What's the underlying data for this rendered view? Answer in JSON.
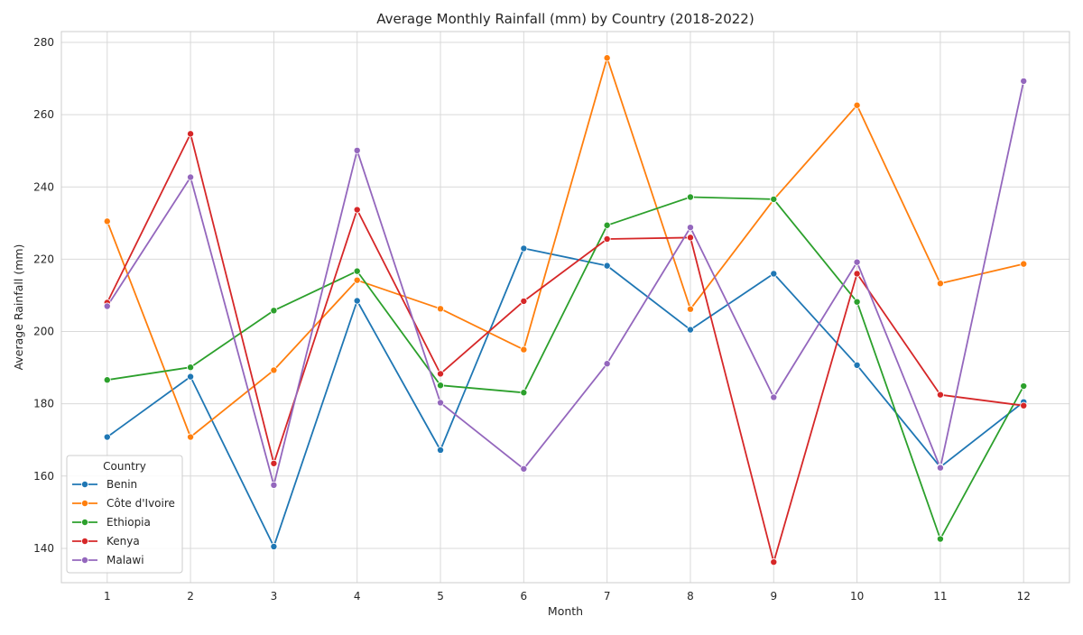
{
  "chart_data": {
    "type": "line",
    "title": "Average Monthly Rainfall (mm) by Country (2018-2022)",
    "xlabel": "Month",
    "ylabel": "Average Rainfall (mm)",
    "x": [
      1,
      2,
      3,
      4,
      5,
      6,
      7,
      8,
      9,
      10,
      11,
      12
    ],
    "xlim": [
      0.45,
      12.55
    ],
    "ylim": [
      130.5,
      283
    ],
    "yticks": [
      140,
      160,
      180,
      200,
      220,
      240,
      260,
      280
    ],
    "grid": true,
    "legend_title": "Country",
    "legend_position": "lower-left",
    "series": [
      {
        "name": "Benin",
        "color": "#1f77b4",
        "values": [
          170.8,
          187.5,
          140.5,
          208.5,
          167.2,
          223.0,
          218.2,
          200.5,
          216.0,
          190.7,
          162.5,
          180.5
        ]
      },
      {
        "name": "Côte d'Ivoire",
        "color": "#ff7f0e",
        "values": [
          230.5,
          170.8,
          189.3,
          214.2,
          206.3,
          195.0,
          275.7,
          206.2,
          236.5,
          262.6,
          213.3,
          218.7
        ]
      },
      {
        "name": "Ethiopia",
        "color": "#2ca02c",
        "values": [
          186.6,
          190.1,
          205.8,
          216.7,
          185.1,
          183.1,
          229.4,
          237.2,
          236.6,
          208.2,
          142.6,
          184.9
        ]
      },
      {
        "name": "Kenya",
        "color": "#d62728",
        "values": [
          208.0,
          254.7,
          163.5,
          233.7,
          188.3,
          208.4,
          225.6,
          226.0,
          136.2,
          216.0,
          182.5,
          179.5
        ]
      },
      {
        "name": "Malawi",
        "color": "#9467bd",
        "values": [
          207.0,
          242.7,
          157.5,
          250.1,
          180.3,
          162.0,
          191.1,
          228.8,
          181.8,
          219.2,
          162.3,
          269.3
        ]
      }
    ]
  }
}
